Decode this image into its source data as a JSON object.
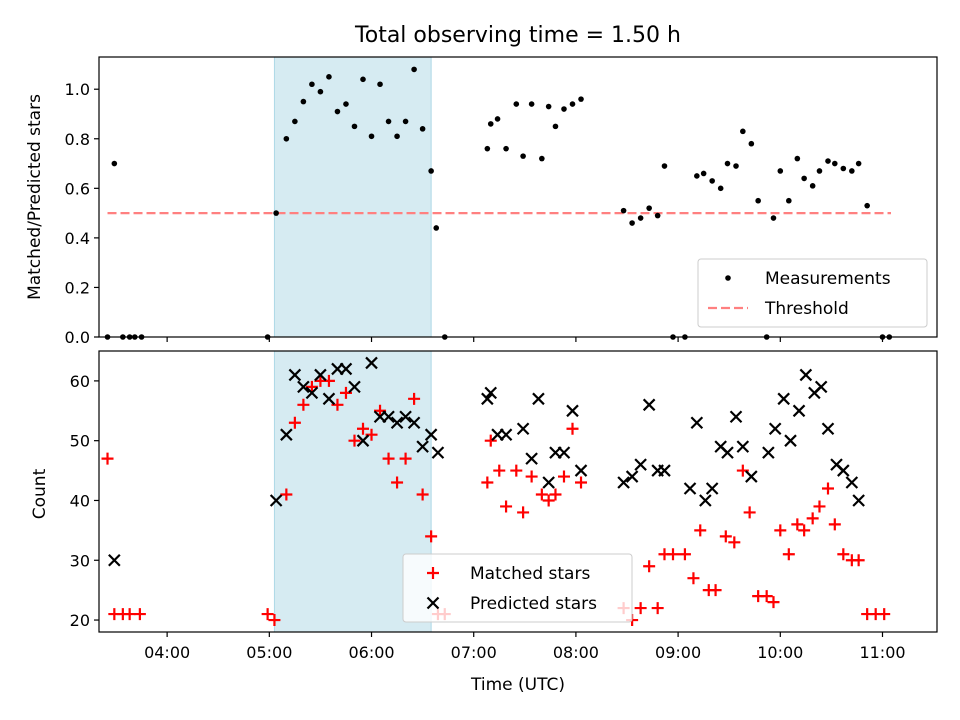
{
  "chart_data": [
    {
      "type": "scatter",
      "title": "Total observing time = 1.50 h",
      "xlabel": "",
      "ylabel": "Matched/Predicted stars",
      "xlim": [
        "03:20",
        "11:32"
      ],
      "ylim": [
        0,
        1.13
      ],
      "x_ticks": [
        "04:00",
        "05:00",
        "06:00",
        "07:00",
        "08:00",
        "09:00",
        "10:00",
        "11:00"
      ],
      "y_ticks": [
        "0.0",
        "0.2",
        "0.4",
        "0.6",
        "0.8",
        "1.0"
      ],
      "grid": false,
      "shaded_span": {
        "x": [
          "05:03",
          "06:35"
        ],
        "color": "#add8e6"
      },
      "threshold": {
        "name": "Threshold",
        "y": 0.5,
        "x": [
          "03:25",
          "11:05"
        ],
        "color": "#ff8080"
      },
      "series": [
        {
          "name": "Measurements",
          "color": "#000000",
          "points": [
            [
              "03:25",
              0.0
            ],
            [
              "03:29",
              0.7
            ],
            [
              "03:34",
              0.0
            ],
            [
              "03:38",
              0.0
            ],
            [
              "03:41",
              0.0
            ],
            [
              "03:45",
              0.0
            ],
            [
              "04:59",
              0.0
            ],
            [
              "05:04",
              0.5
            ],
            [
              "05:10",
              0.8
            ],
            [
              "05:15",
              0.87
            ],
            [
              "05:20",
              0.95
            ],
            [
              "05:25",
              1.02
            ],
            [
              "05:30",
              0.99
            ],
            [
              "05:35",
              1.05
            ],
            [
              "05:40",
              0.91
            ],
            [
              "05:45",
              0.94
            ],
            [
              "05:50",
              0.85
            ],
            [
              "05:55",
              1.04
            ],
            [
              "06:00",
              0.81
            ],
            [
              "06:05",
              1.02
            ],
            [
              "06:10",
              0.87
            ],
            [
              "06:15",
              0.81
            ],
            [
              "06:20",
              0.87
            ],
            [
              "06:25",
              1.08
            ],
            [
              "06:30",
              0.84
            ],
            [
              "06:35",
              0.67
            ],
            [
              "06:38",
              0.44
            ],
            [
              "06:43",
              0.0
            ],
            [
              "07:08",
              0.76
            ],
            [
              "07:10",
              0.86
            ],
            [
              "07:14",
              0.88
            ],
            [
              "07:19",
              0.76
            ],
            [
              "07:25",
              0.94
            ],
            [
              "07:29",
              0.73
            ],
            [
              "07:34",
              0.94
            ],
            [
              "07:40",
              0.72
            ],
            [
              "07:44",
              0.93
            ],
            [
              "07:48",
              0.85
            ],
            [
              "07:53",
              0.92
            ],
            [
              "07:58",
              0.94
            ],
            [
              "08:03",
              0.96
            ],
            [
              "08:28",
              0.51
            ],
            [
              "08:33",
              0.46
            ],
            [
              "08:38",
              0.48
            ],
            [
              "08:43",
              0.52
            ],
            [
              "08:48",
              0.49
            ],
            [
              "08:52",
              0.69
            ],
            [
              "08:57",
              0.0
            ],
            [
              "09:04",
              0.0
            ],
            [
              "09:11",
              0.65
            ],
            [
              "09:15",
              0.66
            ],
            [
              "09:20",
              0.63
            ],
            [
              "09:25",
              0.6
            ],
            [
              "09:29",
              0.7
            ],
            [
              "09:34",
              0.69
            ],
            [
              "09:38",
              0.83
            ],
            [
              "09:43",
              0.78
            ],
            [
              "09:47",
              0.55
            ],
            [
              "09:52",
              0.0
            ],
            [
              "09:56",
              0.48
            ],
            [
              "10:00",
              0.67
            ],
            [
              "10:05",
              0.55
            ],
            [
              "10:10",
              0.72
            ],
            [
              "10:14",
              0.64
            ],
            [
              "10:19",
              0.61
            ],
            [
              "10:23",
              0.67
            ],
            [
              "10:28",
              0.71
            ],
            [
              "10:32",
              0.7
            ],
            [
              "10:37",
              0.68
            ],
            [
              "10:42",
              0.67
            ],
            [
              "10:46",
              0.7
            ],
            [
              "10:51",
              0.53
            ],
            [
              "11:00",
              0.0
            ],
            [
              "11:04",
              0.0
            ]
          ]
        }
      ],
      "legend": {
        "placement": "lower-right",
        "entries": [
          "Measurements",
          "Threshold"
        ]
      }
    },
    {
      "type": "scatter",
      "title": "",
      "xlabel": "Time (UTC)",
      "ylabel": "Count",
      "xlim": [
        "03:20",
        "11:32"
      ],
      "ylim": [
        18,
        65
      ],
      "x_ticks": [
        "04:00",
        "05:00",
        "06:00",
        "07:00",
        "08:00",
        "09:00",
        "10:00",
        "11:00"
      ],
      "y_ticks": [
        "20",
        "30",
        "40",
        "50",
        "60"
      ],
      "grid": false,
      "shaded_span": {
        "x": [
          "05:03",
          "06:35"
        ],
        "color": "#add8e6"
      },
      "series": [
        {
          "name": "Matched stars",
          "color": "#ff0000",
          "marker": "+",
          "points": [
            [
              "03:25",
              47
            ],
            [
              "03:29",
              21
            ],
            [
              "03:34",
              21
            ],
            [
              "03:38",
              21
            ],
            [
              "03:44",
              21
            ],
            [
              "04:59",
              21
            ],
            [
              "05:03",
              20
            ],
            [
              "05:10",
              41
            ],
            [
              "05:15",
              53
            ],
            [
              "05:20",
              56
            ],
            [
              "05:25",
              59
            ],
            [
              "05:30",
              60
            ],
            [
              "05:35",
              60
            ],
            [
              "05:40",
              56
            ],
            [
              "05:45",
              58
            ],
            [
              "05:50",
              50
            ],
            [
              "05:55",
              52
            ],
            [
              "06:00",
              51
            ],
            [
              "06:05",
              55
            ],
            [
              "06:10",
              47
            ],
            [
              "06:15",
              43
            ],
            [
              "06:20",
              47
            ],
            [
              "06:25",
              57
            ],
            [
              "06:30",
              41
            ],
            [
              "06:35",
              34
            ],
            [
              "06:39",
              21
            ],
            [
              "06:43",
              21
            ],
            [
              "07:08",
              43
            ],
            [
              "07:10",
              50
            ],
            [
              "07:15",
              45
            ],
            [
              "07:19",
              39
            ],
            [
              "07:25",
              45
            ],
            [
              "07:29",
              38
            ],
            [
              "07:34",
              44
            ],
            [
              "07:40",
              41
            ],
            [
              "07:44",
              40
            ],
            [
              "07:48",
              41
            ],
            [
              "07:53",
              44
            ],
            [
              "07:58",
              52
            ],
            [
              "08:03",
              43
            ],
            [
              "08:28",
              22
            ],
            [
              "08:33",
              20
            ],
            [
              "08:38",
              22
            ],
            [
              "08:43",
              29
            ],
            [
              "08:48",
              22
            ],
            [
              "08:52",
              31
            ],
            [
              "08:57",
              31
            ],
            [
              "09:04",
              31
            ],
            [
              "09:09",
              27
            ],
            [
              "09:13",
              35
            ],
            [
              "09:18",
              25
            ],
            [
              "09:22",
              25
            ],
            [
              "09:28",
              34
            ],
            [
              "09:33",
              33
            ],
            [
              "09:38",
              45
            ],
            [
              "09:42",
              38
            ],
            [
              "09:47",
              24
            ],
            [
              "09:52",
              24
            ],
            [
              "09:56",
              23
            ],
            [
              "10:00",
              35
            ],
            [
              "10:05",
              31
            ],
            [
              "10:10",
              36
            ],
            [
              "10:14",
              35
            ],
            [
              "10:19",
              37
            ],
            [
              "10:23",
              39
            ],
            [
              "10:28",
              42
            ],
            [
              "10:32",
              36
            ],
            [
              "10:37",
              31
            ],
            [
              "10:42",
              30
            ],
            [
              "10:46",
              30
            ],
            [
              "10:51",
              21
            ],
            [
              "10:56",
              21
            ],
            [
              "11:01",
              21
            ]
          ]
        },
        {
          "name": "Predicted stars",
          "color": "#000000",
          "marker": "x",
          "points": [
            [
              "03:29",
              30
            ],
            [
              "05:04",
              40
            ],
            [
              "05:10",
              51
            ],
            [
              "05:15",
              61
            ],
            [
              "05:20",
              59
            ],
            [
              "05:25",
              58
            ],
            [
              "05:30",
              61
            ],
            [
              "05:35",
              57
            ],
            [
              "05:40",
              62
            ],
            [
              "05:45",
              62
            ],
            [
              "05:50",
              59
            ],
            [
              "05:55",
              50
            ],
            [
              "06:00",
              63
            ],
            [
              "06:05",
              54
            ],
            [
              "06:10",
              54
            ],
            [
              "06:15",
              53
            ],
            [
              "06:20",
              54
            ],
            [
              "06:25",
              53
            ],
            [
              "06:30",
              49
            ],
            [
              "06:35",
              51
            ],
            [
              "06:39",
              48
            ],
            [
              "07:08",
              57
            ],
            [
              "07:10",
              58
            ],
            [
              "07:14",
              51
            ],
            [
              "07:19",
              51
            ],
            [
              "07:29",
              52
            ],
            [
              "07:34",
              47
            ],
            [
              "07:38",
              57
            ],
            [
              "07:44",
              43
            ],
            [
              "07:48",
              48
            ],
            [
              "07:53",
              48
            ],
            [
              "07:58",
              55
            ],
            [
              "08:03",
              45
            ],
            [
              "08:28",
              43
            ],
            [
              "08:33",
              44
            ],
            [
              "08:38",
              46
            ],
            [
              "08:43",
              56
            ],
            [
              "08:48",
              45
            ],
            [
              "08:52",
              45
            ],
            [
              "09:07",
              42
            ],
            [
              "09:11",
              53
            ],
            [
              "09:16",
              40
            ],
            [
              "09:20",
              42
            ],
            [
              "09:25",
              49
            ],
            [
              "09:29",
              48
            ],
            [
              "09:34",
              54
            ],
            [
              "09:38",
              49
            ],
            [
              "09:43",
              44
            ],
            [
              "09:53",
              48
            ],
            [
              "09:57",
              52
            ],
            [
              "10:02",
              57
            ],
            [
              "10:06",
              50
            ],
            [
              "10:11",
              55
            ],
            [
              "10:15",
              61
            ],
            [
              "10:20",
              58
            ],
            [
              "10:24",
              59
            ],
            [
              "10:28",
              52
            ],
            [
              "10:33",
              46
            ],
            [
              "10:37",
              45
            ],
            [
              "10:42",
              43
            ],
            [
              "10:46",
              40
            ]
          ]
        }
      ],
      "legend": {
        "placement": "lower-center",
        "entries": [
          "Matched stars",
          "Predicted stars"
        ]
      }
    }
  ]
}
